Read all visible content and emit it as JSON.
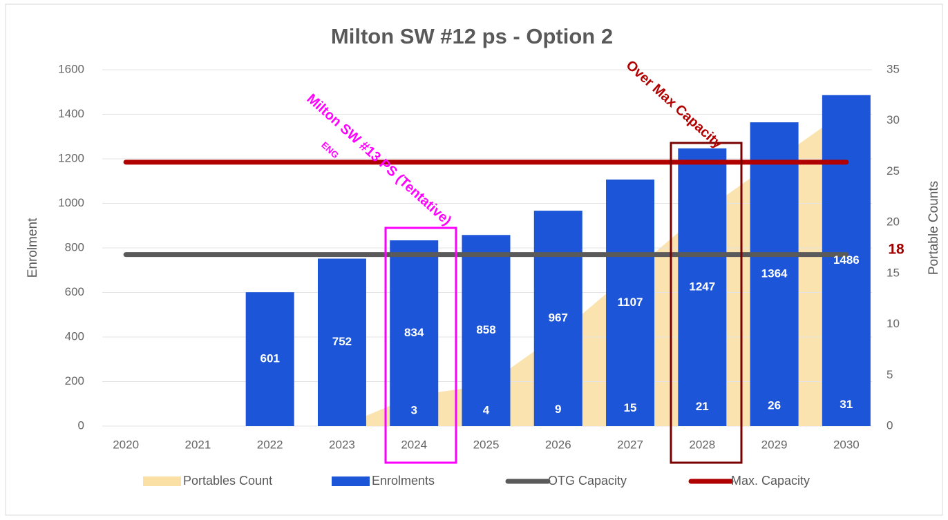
{
  "chart_data": {
    "type": "combo",
    "title": "Milton SW #12 ps - Option 2",
    "y_label": "Enrolment",
    "y2_label": "Portable Counts",
    "categories": [
      "2020",
      "2021",
      "2022",
      "2023",
      "2024",
      "2025",
      "2026",
      "2027",
      "2028",
      "2029",
      "2030"
    ],
    "ylim": [
      0,
      1600
    ],
    "yticks": [
      0,
      200,
      400,
      600,
      800,
      1000,
      1200,
      1400,
      1600
    ],
    "y2lim": [
      0,
      35
    ],
    "y2ticks": [
      0,
      5,
      10,
      15,
      20,
      25,
      30,
      35
    ],
    "grid": true,
    "legend": "bottom",
    "series": [
      {
        "name": "Portables Count",
        "type": "area",
        "axis": "y2",
        "color": "#fae0a5",
        "values": [
          null,
          null,
          null,
          0,
          3,
          4,
          9,
          15,
          21,
          26,
          31
        ]
      },
      {
        "name": "Enrolments",
        "type": "bar",
        "color": "#1c55d8",
        "values": [
          null,
          null,
          601,
          752,
          834,
          858,
          967,
          1107,
          1247,
          1364,
          1486
        ]
      },
      {
        "name": "OTG Capacity",
        "type": "line",
        "color": "#5a5a5a",
        "values": [
          770,
          770,
          770,
          770,
          770,
          770,
          770,
          770,
          770,
          770,
          770
        ]
      },
      {
        "name": "Max. Capacity",
        "type": "line",
        "color": "#b00000",
        "values": [
          1185,
          1185,
          1185,
          1185,
          1185,
          1185,
          1185,
          1185,
          1185,
          1185,
          1185
        ]
      }
    ],
    "annotations": [
      "Milton SW #13 PS (Tentative)",
      "ENG",
      "Over Max Capacity",
      "18"
    ]
  }
}
